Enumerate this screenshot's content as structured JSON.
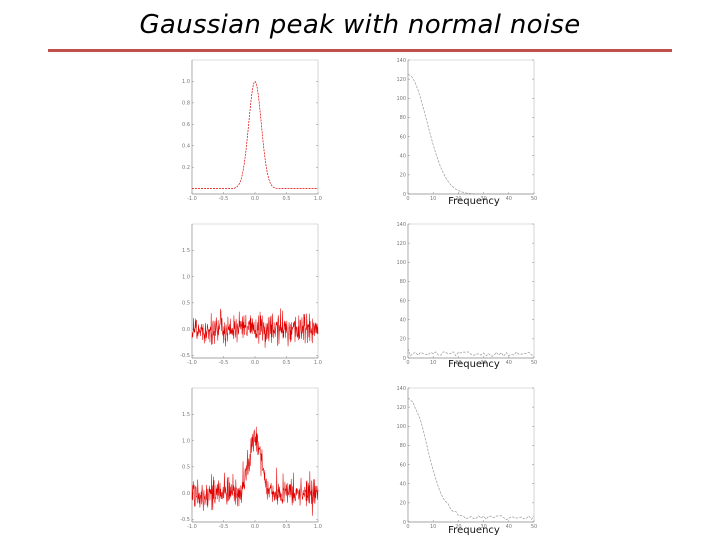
{
  "title": "Gaussian peak with normal noise",
  "colors": {
    "title_rule": "#c0504d",
    "signal": "#e00000",
    "spectrum": "#999999",
    "axis": "#888888"
  },
  "chart_data": [
    {
      "type": "line",
      "panel": "signal-clean",
      "series": [
        {
          "kind": "gaussian",
          "amplitude": 1.0,
          "center": 0.0,
          "sigma": 0.1,
          "noise_sd": 0.0,
          "points": 201
        }
      ],
      "xlim": [
        -1.0,
        1.0
      ],
      "ylim": [
        -0.05,
        1.2
      ],
      "xticks": [
        -1.0,
        -0.5,
        0.0,
        0.5,
        1.0
      ],
      "xtick_labels": [
        "-1.0",
        "-0.5",
        "0.0",
        "0.5",
        "1.0"
      ],
      "yticks": [
        0.2,
        0.4,
        0.6,
        0.8,
        1.0
      ],
      "ytick_labels": [
        "0.2",
        "0.4",
        "0.6",
        "0.8",
        "1.0"
      ],
      "xlabel": ""
    },
    {
      "type": "line",
      "panel": "spectrum-clean",
      "series": [
        {
          "kind": "spectrum",
          "start": 125,
          "decay_width": 7.5,
          "noise_floor": 0
        }
      ],
      "xlim": [
        0,
        50
      ],
      "ylim": [
        0,
        140
      ],
      "xticks": [
        0,
        10,
        20,
        30,
        40,
        50
      ],
      "xtick_labels": [
        "0",
        "10",
        "20",
        "30",
        "40",
        "50"
      ],
      "yticks": [
        0,
        20,
        40,
        60,
        80,
        100,
        120,
        140
      ],
      "ytick_labels": [
        "0",
        "20",
        "40",
        "60",
        "80",
        "100",
        "120",
        "140"
      ],
      "xlabel": "Frequency"
    },
    {
      "type": "line",
      "panel": "signal-noise",
      "series": [
        {
          "kind": "gaussian",
          "amplitude": 0.0,
          "center": 0.0,
          "sigma": 0.1,
          "noise_sd": 0.15,
          "points": 401
        }
      ],
      "xlim": [
        -1.0,
        1.0
      ],
      "ylim": [
        -0.55,
        2.0
      ],
      "xticks": [
        -1.0,
        -0.5,
        0.0,
        0.5,
        1.0
      ],
      "xtick_labels": [
        "-1.0",
        "-0.5",
        "0.0",
        "0.5",
        "1.0"
      ],
      "yticks": [
        -0.5,
        0.0,
        0.5,
        1.0,
        1.5
      ],
      "ytick_labels": [
        "-0.5",
        "0.0",
        "0.5",
        "1.0",
        "1.5"
      ],
      "xlabel": ""
    },
    {
      "type": "line",
      "panel": "spectrum-noise",
      "series": [
        {
          "kind": "spectrum",
          "start": 4,
          "decay_width": 0,
          "noise_floor": 5
        }
      ],
      "xlim": [
        0,
        50
      ],
      "ylim": [
        0,
        140
      ],
      "xticks": [
        0,
        10,
        20,
        30,
        40,
        50
      ],
      "xtick_labels": [
        "0",
        "10",
        "20",
        "30",
        "40",
        "50"
      ],
      "yticks": [
        0,
        20,
        40,
        60,
        80,
        100,
        120,
        140
      ],
      "ytick_labels": [
        "0",
        "20",
        "40",
        "60",
        "80",
        "100",
        "120",
        "140"
      ],
      "xlabel": "Frequency"
    },
    {
      "type": "line",
      "panel": "signal-peak-noise",
      "series": [
        {
          "kind": "gaussian",
          "amplitude": 1.0,
          "center": 0.0,
          "sigma": 0.1,
          "noise_sd": 0.15,
          "points": 401
        }
      ],
      "xlim": [
        -1.0,
        1.0
      ],
      "ylim": [
        -0.55,
        2.0
      ],
      "xticks": [
        -1.0,
        -0.5,
        0.0,
        0.5,
        1.0
      ],
      "xtick_labels": [
        "-1.0",
        "-0.5",
        "0.0",
        "0.5",
        "1.0"
      ],
      "yticks": [
        -0.5,
        0.0,
        0.5,
        1.0,
        1.5
      ],
      "ytick_labels": [
        "-0.5",
        "0.0",
        "0.5",
        "1.0",
        "1.5"
      ],
      "xlabel": ""
    },
    {
      "type": "line",
      "panel": "spectrum-peak-noise",
      "series": [
        {
          "kind": "spectrum",
          "start": 125,
          "decay_width": 7.5,
          "noise_floor": 5
        }
      ],
      "xlim": [
        0,
        50
      ],
      "ylim": [
        0,
        140
      ],
      "xticks": [
        0,
        10,
        20,
        30,
        40,
        50
      ],
      "xtick_labels": [
        "0",
        "10",
        "20",
        "30",
        "40",
        "50"
      ],
      "yticks": [
        0,
        20,
        40,
        60,
        80,
        100,
        120,
        140
      ],
      "ytick_labels": [
        "0",
        "20",
        "40",
        "60",
        "80",
        "100",
        "120",
        "140"
      ],
      "xlabel": "Frequency"
    }
  ]
}
